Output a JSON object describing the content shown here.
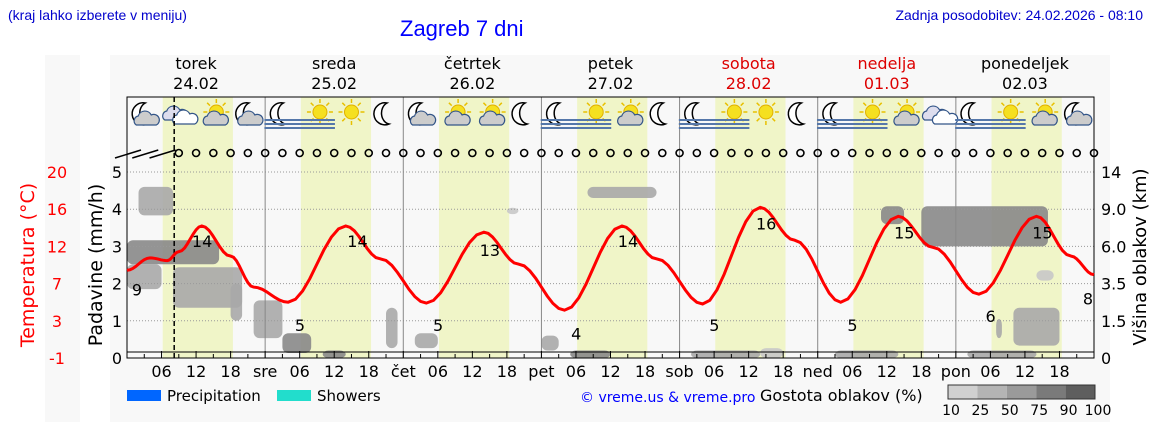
{
  "header": {
    "region_note": "(kraj lahko izberete v meniju)",
    "title": "Zagreb 7 dni",
    "updated": "Zadnja posodobitev: 24.02.2026 - 08:10"
  },
  "days": [
    {
      "name": "torek",
      "date": "24.02",
      "weekend": false,
      "abbr": ""
    },
    {
      "name": "sreda",
      "date": "25.02",
      "weekend": false,
      "abbr": "sre"
    },
    {
      "name": "četrtek",
      "date": "26.02",
      "weekend": false,
      "abbr": "čet"
    },
    {
      "name": "petek",
      "date": "27.02",
      "weekend": false,
      "abbr": "pet"
    },
    {
      "name": "sobota",
      "date": "28.02",
      "weekend": true,
      "abbr": "sob"
    },
    {
      "name": "nedelja",
      "date": "01.03",
      "weekend": true,
      "abbr": "ned"
    },
    {
      "name": "ponedeljek",
      "date": "02.03",
      "weekend": false,
      "abbr": "pon"
    }
  ],
  "hour_ticks": [
    "06",
    "12",
    "18"
  ],
  "weather_icons": [
    [
      "moon-cloud",
      "cloud",
      "sun-cloud",
      "moon-cloud"
    ],
    [
      "moon-fog",
      "sun-fog",
      "sun",
      "moon"
    ],
    [
      "moon-cloud",
      "sun-cloud",
      "sun-cloud",
      "moon"
    ],
    [
      "moon-fog",
      "sun-fog",
      "sun-cloud",
      "moon"
    ],
    [
      "moon-fog",
      "sun-fog",
      "sun",
      "moon"
    ],
    [
      "moon-fog",
      "sun-fog",
      "sun-cloud",
      "cloud"
    ],
    [
      "moon-fog",
      "sun-fog",
      "sun-cloud",
      "moon-cloud"
    ]
  ],
  "wind": {
    "barbs_until_hour": 8,
    "calm_symbol": "circle-calm-icon"
  },
  "current_time_hour": 8.2,
  "colors": {
    "temperature": "#ff0000",
    "daylight": "#f0f5c8",
    "precipitation": "#0066ff",
    "showers": "#22ddcc",
    "weekend": "#dd0000",
    "link": "#0000ff"
  },
  "chart_data": {
    "type": "line",
    "x_unit": "hours from Tuesday 24.02 00:00",
    "xlim": [
      0,
      168
    ],
    "axes": {
      "left_temp": {
        "label": "Temperatura (°C)",
        "ticks": [
          "20",
          "16",
          "12",
          "7",
          "3",
          "-1"
        ],
        "range": [
          -1,
          20
        ]
      },
      "left_precip": {
        "label": "Padavine (mm/h)",
        "ticks": [
          "0",
          "1",
          "2",
          "3",
          "4",
          "5"
        ],
        "range": [
          0,
          5
        ]
      },
      "right_cloud": {
        "label": "Višina oblakov (km)",
        "ticks": [
          "0",
          "1.5",
          "3.5",
          "6.0",
          "9.0",
          "14"
        ]
      }
    },
    "temperature": {
      "points": [
        [
          0,
          8.9
        ],
        [
          4,
          10.3
        ],
        [
          7,
          10.0
        ],
        [
          9,
          11.0
        ],
        [
          13,
          13.9
        ],
        [
          18,
          10.5
        ],
        [
          22,
          7.0
        ],
        [
          28,
          5.3
        ],
        [
          38,
          13.9
        ],
        [
          44,
          10.2
        ],
        [
          52,
          5.2
        ],
        [
          62,
          13.2
        ],
        [
          68,
          9.6
        ],
        [
          76,
          4.4
        ],
        [
          86,
          13.9
        ],
        [
          92,
          10.2
        ],
        [
          100,
          5.1
        ],
        [
          110,
          16.0
        ],
        [
          116,
          12.3
        ],
        [
          124,
          5.3
        ],
        [
          134,
          15.0
        ],
        [
          140,
          11.5
        ],
        [
          148,
          6.2
        ],
        [
          158,
          15.0
        ],
        [
          164,
          10.5
        ],
        [
          168,
          8.4
        ]
      ],
      "labels": [
        [
          0,
          "9"
        ],
        [
          12,
          "14"
        ],
        [
          29,
          "5"
        ],
        [
          39,
          "14"
        ],
        [
          53,
          "5"
        ],
        [
          62,
          "13"
        ],
        [
          77,
          "4"
        ],
        [
          86,
          "14"
        ],
        [
          101,
          "5"
        ],
        [
          110,
          "16"
        ],
        [
          125,
          "5"
        ],
        [
          134,
          "15"
        ],
        [
          149,
          "6"
        ],
        [
          158,
          "15"
        ],
        [
          168,
          "8"
        ]
      ]
    },
    "precipitation": [],
    "cloud_density": {
      "label": "Gostota oblakov (%)",
      "scale": [
        "10",
        "25",
        "50",
        "75",
        "90",
        "100"
      ],
      "patches": [
        [
          0,
          16,
          4.8,
          6.5,
          75
        ],
        [
          2,
          8,
          8.5,
          12,
          50
        ],
        [
          0,
          6,
          3.2,
          4.8,
          50
        ],
        [
          8,
          20,
          2.2,
          4.6,
          50
        ],
        [
          18,
          20,
          1.5,
          3.5,
          50
        ],
        [
          22,
          27,
          0.8,
          2.6,
          50
        ],
        [
          27,
          32,
          0.2,
          1.0,
          75
        ],
        [
          34,
          38,
          0,
          0.3,
          75
        ],
        [
          45,
          47,
          0.4,
          2.2,
          50
        ],
        [
          50,
          54,
          0.4,
          1.0,
          50
        ],
        [
          72,
          75,
          0.3,
          0.9,
          50
        ],
        [
          80,
          92,
          10.5,
          12,
          50
        ],
        [
          66,
          68,
          8.6,
          9.2,
          25
        ],
        [
          77,
          84,
          0,
          0.3,
          75
        ],
        [
          98,
          110,
          0,
          0.3,
          50
        ],
        [
          110,
          114,
          0,
          0.4,
          25
        ],
        [
          123,
          134,
          0,
          0.3,
          50
        ],
        [
          131,
          135,
          7.8,
          9.4,
          75
        ],
        [
          138,
          160,
          6.0,
          9.4,
          75
        ],
        [
          146,
          158,
          0,
          0.3,
          50
        ],
        [
          151,
          152,
          0.8,
          1.6,
          50
        ],
        [
          154,
          162,
          0.5,
          2.2,
          50
        ],
        [
          158,
          161,
          3.7,
          4.4,
          25
        ]
      ]
    },
    "legend": [
      {
        "name": "Precipitation",
        "color": "#0066ff"
      },
      {
        "name": "Showers",
        "color": "#22ddcc"
      }
    ]
  },
  "footer": {
    "credit": "© vreme.us & vreme.pro"
  }
}
